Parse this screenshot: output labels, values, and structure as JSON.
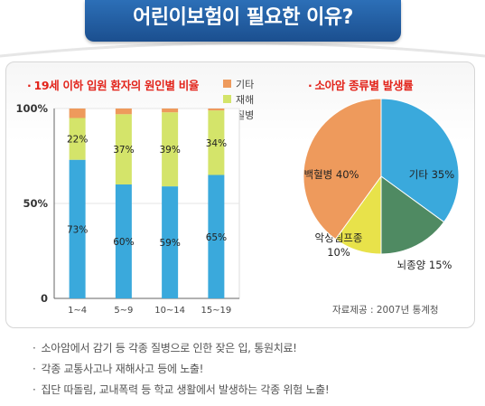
{
  "header": {
    "title": "어린이보험이 필요한 이유?"
  },
  "chart_data": [
    {
      "type": "bar",
      "stacked": true,
      "title": "19세 이하 입원 환자의 원인별 비율",
      "categories": [
        "1~4",
        "5~9",
        "10~14",
        "15~19"
      ],
      "series": [
        {
          "name": "질병",
          "color": "#3aa9dc",
          "values": [
            73,
            60,
            59,
            65
          ]
        },
        {
          "name": "재해",
          "color": "#d4e46a",
          "values": [
            22,
            37,
            39,
            34
          ]
        },
        {
          "name": "기타",
          "color": "#ee9a5c",
          "values": [
            5,
            3,
            2,
            1
          ]
        }
      ],
      "data_labels": {
        "질병": [
          "73%",
          "60%",
          "59%",
          "65%"
        ],
        "재해": [
          "22%",
          "37%",
          "39%",
          "34%"
        ]
      },
      "yticks": [
        "0",
        "50%",
        "100%"
      ],
      "ylim": [
        0,
        100
      ],
      "legend": [
        "기타",
        "재해",
        "질병"
      ],
      "legend_position": "top-right"
    },
    {
      "type": "pie",
      "title": "소아암 종류별 발생률",
      "slices": [
        {
          "name": "기타",
          "value": 35,
          "label": "기타 35%",
          "color": "#3aa9dc"
        },
        {
          "name": "뇌종양",
          "value": 15,
          "label": "뇌종양 15%",
          "color": "#4f8a62"
        },
        {
          "name": "악성림프종",
          "value": 10,
          "label": "악성림프종\n10%",
          "color": "#e8e24a"
        },
        {
          "name": "백혈병",
          "value": 40,
          "label": "백혈병 40%",
          "color": "#ee9a5c"
        }
      ]
    }
  ],
  "source": "자료제공 : 2007년 통계청",
  "bullets": [
    "소아암에서 감기 등 각종 질병으로 인한 잦은 입, 통원치료!",
    "각종 교통사고나 재해사고 등에 노출!",
    "집단 따돌림, 교내폭력 등 학교 생활에서 발생하는 각종 위험 노출!"
  ]
}
